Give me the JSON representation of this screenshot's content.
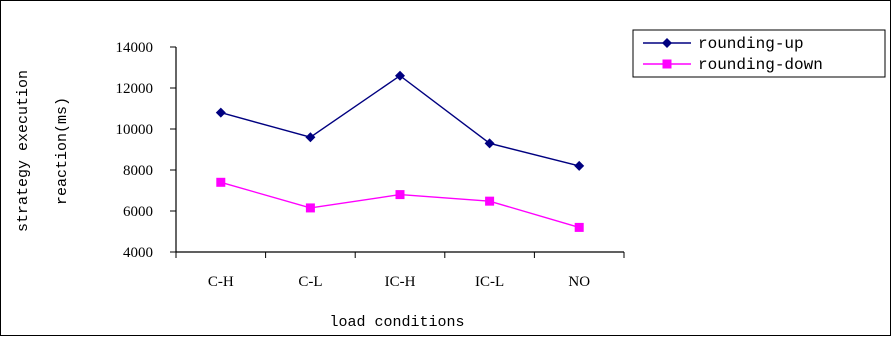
{
  "chart_data": {
    "type": "line",
    "categories": [
      "C-H",
      "C-L",
      "IC-H",
      "IC-L",
      "NO"
    ],
    "series": [
      {
        "name": "rounding-up",
        "values": [
          10800,
          9600,
          12600,
          9300,
          8200
        ],
        "color": "#000080",
        "marker": "diamond"
      },
      {
        "name": "rounding-down",
        "values": [
          7400,
          6150,
          6800,
          6480,
          5200
        ],
        "color": "#FF00FF",
        "marker": "square"
      }
    ],
    "yticks": [
      4000,
      6000,
      8000,
      10000,
      12000,
      14000
    ],
    "ylim": [
      4000,
      14000
    ],
    "xlabel": "load conditions",
    "ylabel_lines": [
      "strategy execution",
      "reaction(ms)"
    ],
    "legend_position": "top-right",
    "grid": false
  }
}
